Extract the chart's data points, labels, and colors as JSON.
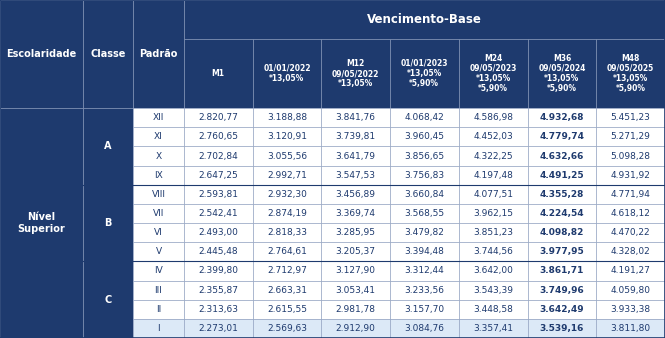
{
  "title": "Vencimento-Base",
  "col_headers": [
    "Escolaridade",
    "Classe",
    "Padrão",
    "M1",
    "01/01/2022\n*13,05%",
    "M12\n09/05/2022\n*13,05%",
    "01/01/2023\n*13,05%\n*5,90%",
    "M24\n09/05/2023\n*13,05%\n*5,90%",
    "M36\n09/05/2024\n*13,05%\n*5,90%",
    "M48\n09/05/2025\n*13,05%\n*5,90%"
  ],
  "rows": [
    [
      "Nível\nSuperior",
      "A",
      "XII",
      "2.820,77",
      "3.188,88",
      "3.841,76",
      "4.068,42",
      "4.586,98",
      "4.932,68",
      "5.451,23"
    ],
    [
      "",
      "A",
      "XI",
      "2.760,65",
      "3.120,91",
      "3.739,81",
      "3.960,45",
      "4.452,03",
      "4.779,74",
      "5.271,29"
    ],
    [
      "",
      "A",
      "X",
      "2.702,84",
      "3.055,56",
      "3.641,79",
      "3.856,65",
      "4.322,25",
      "4.632,66",
      "5.098,28"
    ],
    [
      "",
      "A",
      "IX",
      "2.647,25",
      "2.992,71",
      "3.547,53",
      "3.756,83",
      "4.197,48",
      "4.491,25",
      "4.931,92"
    ],
    [
      "",
      "B",
      "VIII",
      "2.593,81",
      "2.932,30",
      "3.456,89",
      "3.660,84",
      "4.077,51",
      "4.355,28",
      "4.771,94"
    ],
    [
      "",
      "B",
      "VII",
      "2.542,41",
      "2.874,19",
      "3.369,74",
      "3.568,55",
      "3.962,15",
      "4.224,54",
      "4.618,12"
    ],
    [
      "",
      "B",
      "VI",
      "2.493,00",
      "2.818,33",
      "3.285,95",
      "3.479,82",
      "3.851,23",
      "4.098,82",
      "4.470,22"
    ],
    [
      "",
      "B",
      "V",
      "2.445,48",
      "2.764,61",
      "3.205,37",
      "3.394,48",
      "3.744,56",
      "3.977,95",
      "4.328,02"
    ],
    [
      "",
      "C",
      "IV",
      "2.399,80",
      "2.712,97",
      "3.127,90",
      "3.312,44",
      "3.642,00",
      "3.861,71",
      "4.191,27"
    ],
    [
      "",
      "C",
      "III",
      "2.355,87",
      "2.663,31",
      "3.053,41",
      "3.233,56",
      "3.543,39",
      "3.749,96",
      "4.059,80"
    ],
    [
      "",
      "C",
      "II",
      "2.313,63",
      "2.615,55",
      "2.981,78",
      "3.157,70",
      "3.448,58",
      "3.642,49",
      "3.933,38"
    ],
    [
      "",
      "C",
      "I",
      "2.273,01",
      "2.569,63",
      "2.912,90",
      "3.084,76",
      "3.357,41",
      "3.539,16",
      "3.811,80"
    ]
  ],
  "header_bg": "#1e3a6e",
  "header_fg": "#ffffff",
  "cell_fg": "#1e3a6e",
  "row_bg_white": "#ffffff",
  "row_bg_light": "#dce9f7",
  "border_color": "#8899bb",
  "outer_border": "#1e3a6e",
  "col_props": [
    0.118,
    0.072,
    0.072,
    0.098,
    0.098,
    0.098,
    0.098,
    0.098,
    0.098,
    0.098
  ]
}
